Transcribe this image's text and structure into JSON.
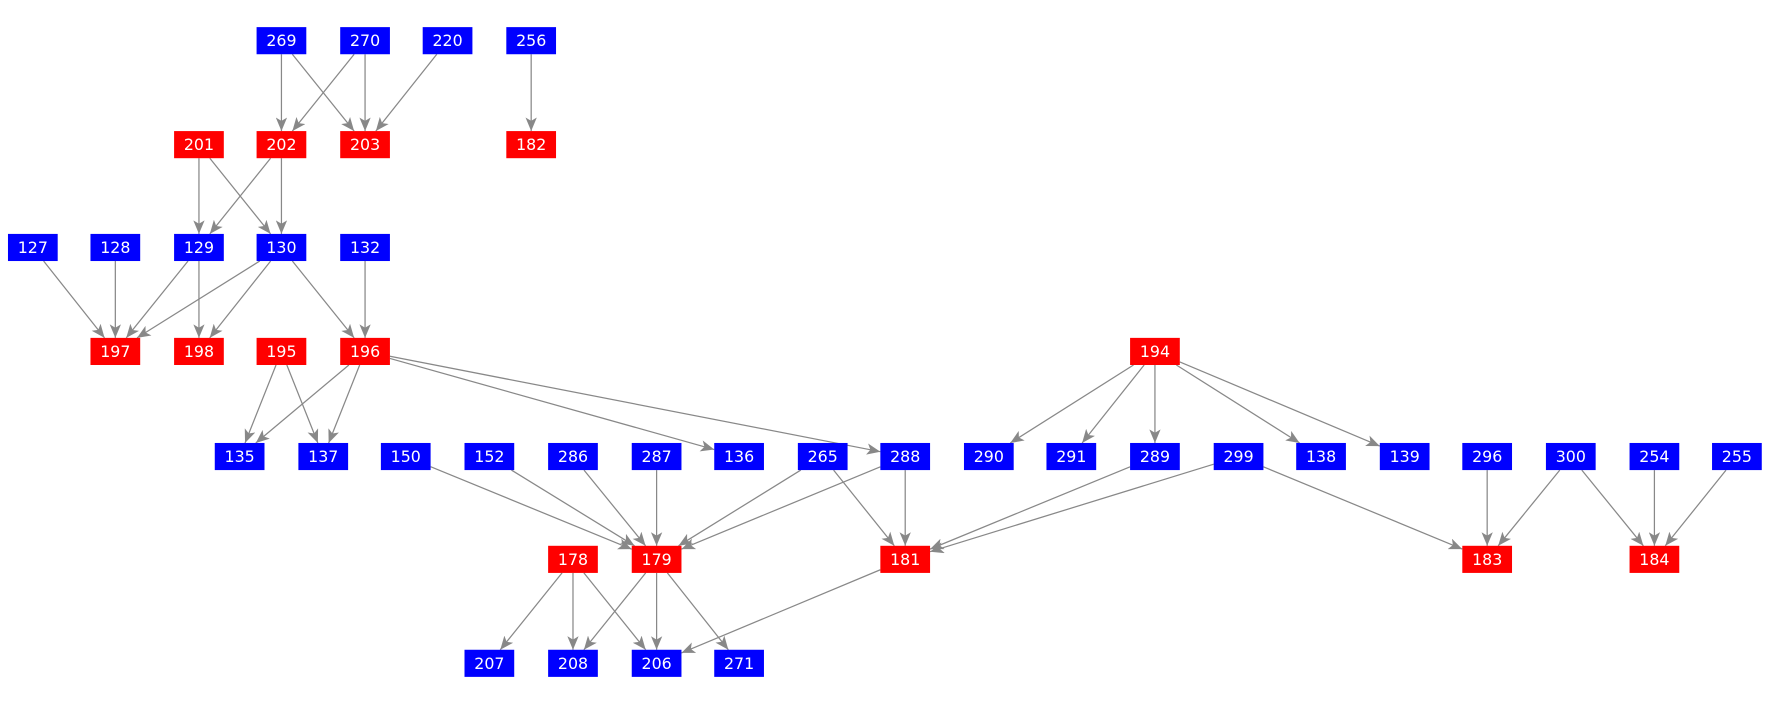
{
  "nodes": [
    {
      "label": "269",
      "color": "#0000ff"
    },
    {
      "label": "270",
      "color": "#0000ff"
    },
    {
      "label": "220",
      "color": "#0000ff"
    },
    {
      "label": "256",
      "color": "#0000ff"
    },
    {
      "label": "201",
      "color": "#ff0000"
    },
    {
      "label": "202",
      "color": "#ff0000"
    },
    {
      "label": "203",
      "color": "#ff0000"
    },
    {
      "label": "182",
      "color": "#ff0000"
    },
    {
      "label": "127",
      "color": "#0000ff"
    },
    {
      "label": "128",
      "color": "#0000ff"
    },
    {
      "label": "129",
      "color": "#0000ff"
    },
    {
      "label": "130",
      "color": "#0000ff"
    },
    {
      "label": "132",
      "color": "#0000ff"
    },
    {
      "label": "197",
      "color": "#ff0000"
    },
    {
      "label": "198",
      "color": "#ff0000"
    },
    {
      "label": "195",
      "color": "#ff0000"
    },
    {
      "label": "196",
      "color": "#ff0000"
    },
    {
      "label": "194",
      "color": "#ff0000"
    },
    {
      "label": "135",
      "color": "#0000ff"
    },
    {
      "label": "137",
      "color": "#0000ff"
    },
    {
      "label": "150",
      "color": "#0000ff"
    },
    {
      "label": "152",
      "color": "#0000ff"
    },
    {
      "label": "286",
      "color": "#0000ff"
    },
    {
      "label": "287",
      "color": "#0000ff"
    },
    {
      "label": "136",
      "color": "#0000ff"
    },
    {
      "label": "265",
      "color": "#0000ff"
    },
    {
      "label": "288",
      "color": "#0000ff"
    },
    {
      "label": "290",
      "color": "#0000ff"
    },
    {
      "label": "291",
      "color": "#0000ff"
    },
    {
      "label": "289",
      "color": "#0000ff"
    },
    {
      "label": "299",
      "color": "#0000ff"
    },
    {
      "label": "138",
      "color": "#0000ff"
    },
    {
      "label": "139",
      "color": "#0000ff"
    },
    {
      "label": "296",
      "color": "#0000ff"
    },
    {
      "label": "300",
      "color": "#0000ff"
    },
    {
      "label": "254",
      "color": "#0000ff"
    },
    {
      "label": "255",
      "color": "#0000ff"
    },
    {
      "label": "178",
      "color": "#ff0000"
    },
    {
      "label": "179",
      "color": "#ff0000"
    },
    {
      "label": "181",
      "color": "#ff0000"
    },
    {
      "label": "183",
      "color": "#ff0000"
    },
    {
      "label": "184",
      "color": "#ff0000"
    },
    {
      "label": "207",
      "color": "#0000ff"
    },
    {
      "label": "208",
      "color": "#0000ff"
    },
    {
      "label": "206",
      "color": "#0000ff"
    },
    {
      "label": "271",
      "color": "#0000ff"
    }
  ]
}
